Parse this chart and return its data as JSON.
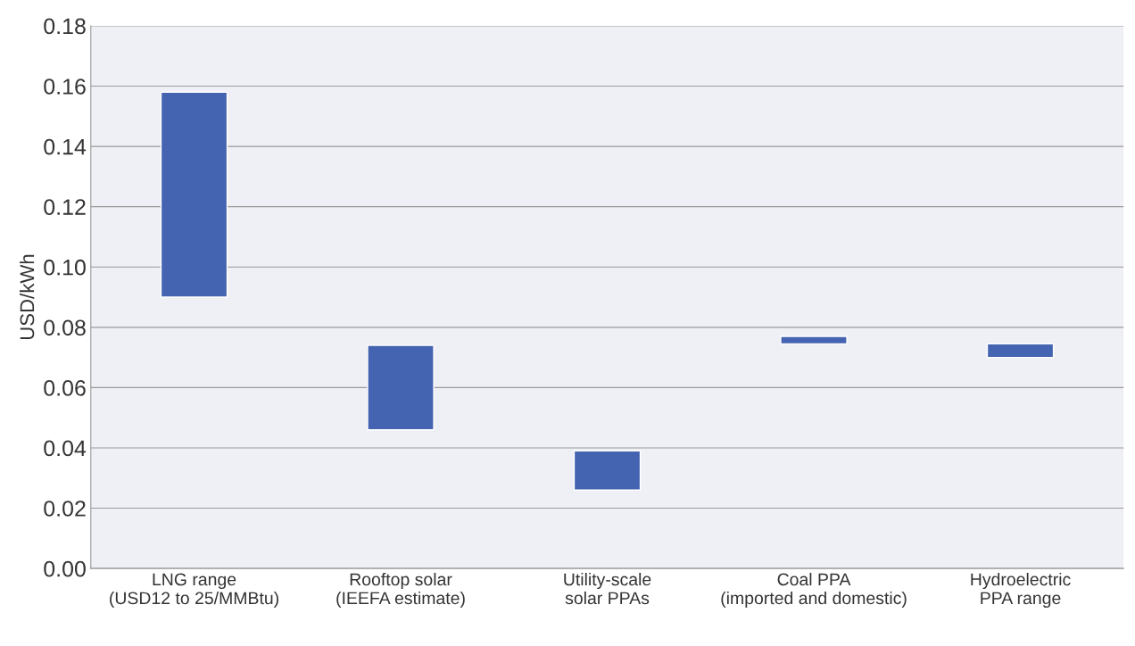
{
  "chart_data": {
    "type": "bar",
    "ylabel": "USD/kWh",
    "categories": [
      "LNG range\n(USD12 to 25/MMBtu)",
      "Rooftop solar\n(IEEFA estimate)",
      "Utility-scale\nsolar PPAs",
      "Coal PPA\n(imported and domestic)",
      "Hydroelectric\nPPA range"
    ],
    "base": [
      0.09,
      0.046,
      0.026,
      0.0745,
      0.07
    ],
    "values": [
      0.068,
      0.028,
      0.013,
      0.0025,
      0.0045
    ],
    "color": "#4463b0",
    "ylim": [
      0,
      0.18
    ],
    "yticks": [
      {
        "value": 0,
        "label": "0.00"
      },
      0.02,
      0.04,
      0.06,
      0.08,
      {
        "value": 0.1,
        "label": "0.10"
      },
      0.12,
      0.14,
      0.16,
      0.18
    ],
    "grid": "y"
  }
}
